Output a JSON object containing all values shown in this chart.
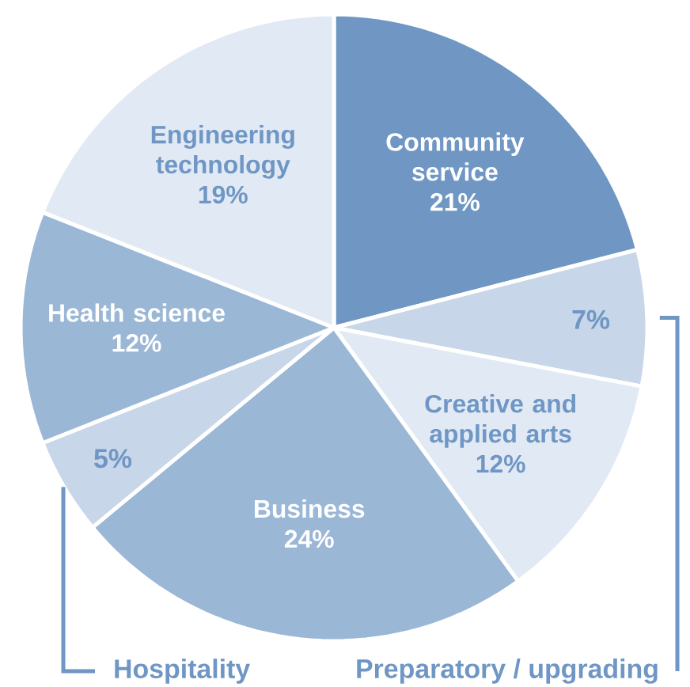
{
  "chart_data": {
    "type": "pie",
    "categories": [
      "Community service",
      "Preparatory / upgrading",
      "Creative and applied arts",
      "Business",
      "Hospitality",
      "Health science",
      "Engineering technology"
    ],
    "values": [
      21,
      7,
      12,
      24,
      5,
      12,
      19
    ],
    "value_labels": [
      "21%",
      "7%",
      "12%",
      "24%",
      "5%",
      "12%",
      "19%"
    ],
    "colors": [
      "#7097c4",
      "#c7d6e8",
      "#e1eaf4",
      "#9bb7d6",
      "#c7d6e8",
      "#9bb7d6",
      "#e1eaf4"
    ]
  }
}
